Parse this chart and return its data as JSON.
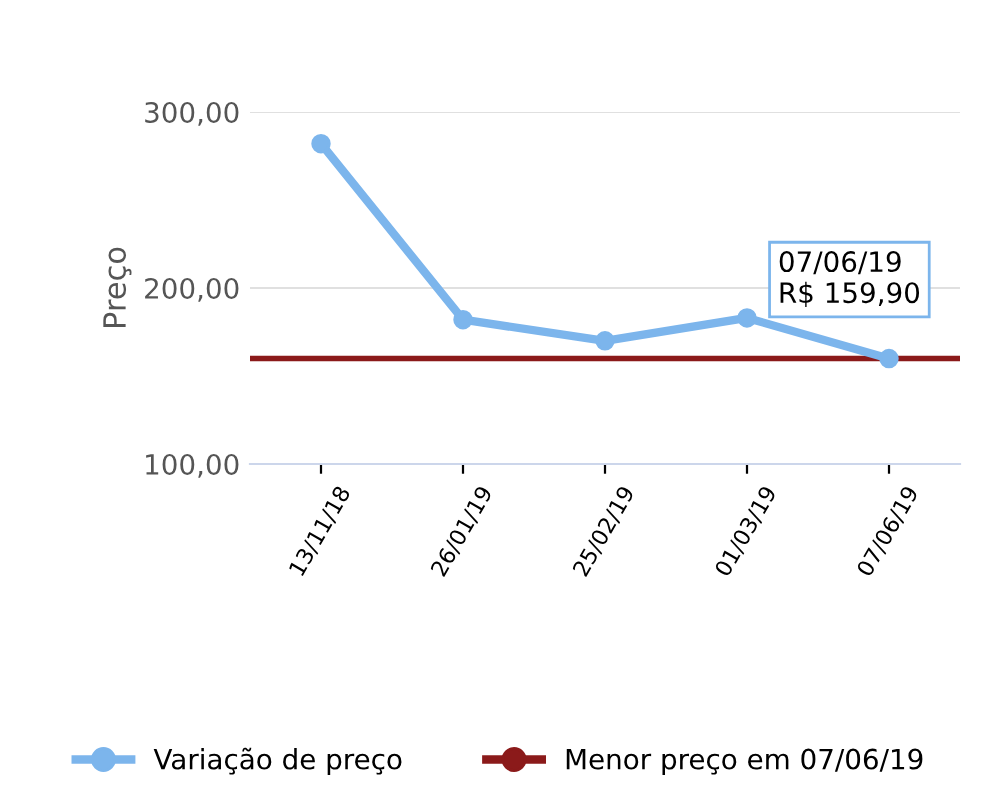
{
  "chart_data": {
    "type": "line",
    "ylabel": "Preço",
    "categories": [
      "13/11/18",
      "26/01/19",
      "25/02/19",
      "01/03/19",
      "07/06/19"
    ],
    "series": [
      {
        "name": "Variação de preço",
        "color": "#7cb5ec",
        "values": [
          282,
          182,
          170,
          183,
          159.9
        ]
      }
    ],
    "ref_lines": [
      {
        "axis": "y",
        "value": 159.9,
        "label": "Menor preço em 07/06/19",
        "color": "#8b1a1a"
      }
    ],
    "annotations": [
      {
        "text": "07/06/19\nR$ 159,90",
        "x": "07/06/19",
        "y": 159.9
      }
    ],
    "ylim": [
      100,
      300
    ],
    "yticks": [
      {
        "value": 100,
        "label": "100,00"
      },
      {
        "value": 200,
        "label": "200,00"
      },
      {
        "value": 300,
        "label": "300,00"
      }
    ],
    "grid": "y",
    "legend": "bottom",
    "marker": "circle",
    "line_style": "solid"
  }
}
